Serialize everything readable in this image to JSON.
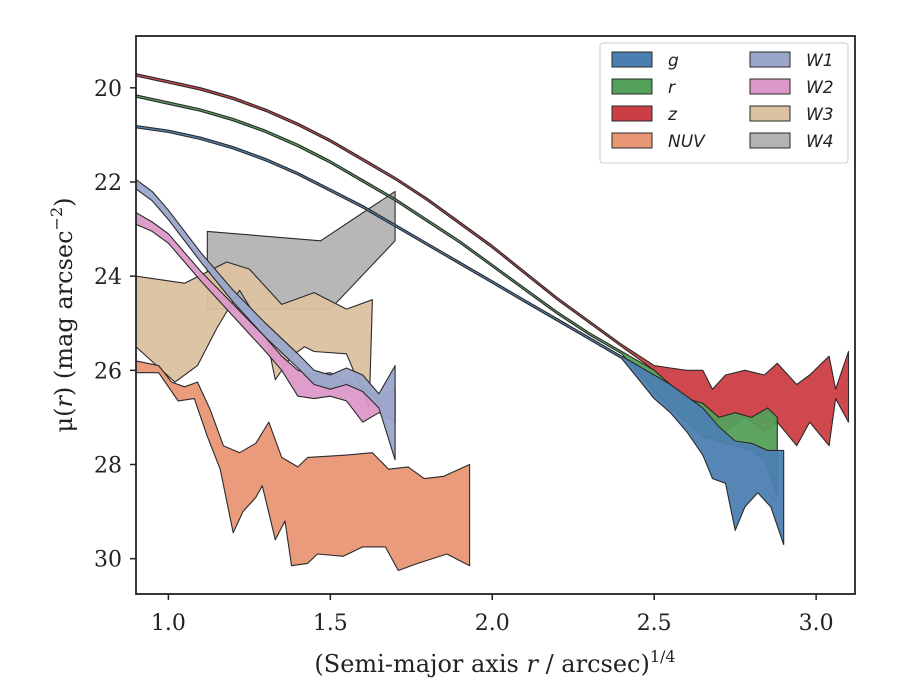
{
  "chart_data": {
    "type": "area",
    "xlabel_main": "(Semi-major axis ",
    "xlabel_var": "r",
    "xlabel_rest": " / arcsec)",
    "xlabel_exp": "1/4",
    "ylabel_main": "μ(",
    "ylabel_var": "r",
    "ylabel_rest": ") (mag arcsec",
    "ylabel_exp": "−2",
    "ylabel_close": ")",
    "xlim": [
      0.9,
      3.12
    ],
    "ylim": [
      30.75,
      18.9
    ],
    "y_inverted": true,
    "grid": false,
    "legend_placement": "top-right",
    "xticks": [
      {
        "v": 1.0,
        "label": "1.0"
      },
      {
        "v": 1.5,
        "label": "1.5"
      },
      {
        "v": 2.0,
        "label": "2.0"
      },
      {
        "v": 2.5,
        "label": "2.5"
      },
      {
        "v": 3.0,
        "label": "3.0"
      }
    ],
    "yticks": [
      {
        "v": 20,
        "label": "20"
      },
      {
        "v": 22,
        "label": "22"
      },
      {
        "v": 24,
        "label": "24"
      },
      {
        "v": 26,
        "label": "26"
      },
      {
        "v": 28,
        "label": "28"
      },
      {
        "v": 30,
        "label": "30"
      }
    ],
    "legend": [
      {
        "name": "g",
        "color": "#4c7fb1"
      },
      {
        "name": "r",
        "color": "#55a05a"
      },
      {
        "name": "z",
        "color": "#cc3e45"
      },
      {
        "name": "NUV",
        "color": "#e99675"
      },
      {
        "name": "W1",
        "color": "#9aa6cb"
      },
      {
        "name": "W2",
        "color": "#dc98c8"
      },
      {
        "name": "W3",
        "color": "#dbc19f"
      },
      {
        "name": "W4",
        "color": "#b3b3b3"
      }
    ],
    "series": [
      {
        "name": "W4",
        "color": "#b3b3b3",
        "polygon": [
          [
            1.12,
            23.05
          ],
          [
            1.47,
            23.25
          ],
          [
            1.7,
            22.2
          ],
          [
            1.7,
            23.25
          ],
          [
            1.5,
            24.7
          ],
          [
            1.12,
            24.7
          ]
        ]
      },
      {
        "name": "W3",
        "color": "#dbc19f",
        "polygon": [
          [
            0.9,
            24.0
          ],
          [
            1.05,
            24.15
          ],
          [
            1.18,
            23.7
          ],
          [
            1.25,
            23.85
          ],
          [
            1.35,
            24.6
          ],
          [
            1.45,
            24.35
          ],
          [
            1.55,
            24.7
          ],
          [
            1.63,
            24.5
          ],
          [
            1.62,
            26.8
          ],
          [
            1.55,
            25.65
          ],
          [
            1.45,
            25.6
          ],
          [
            1.42,
            25.5
          ],
          [
            1.38,
            25.7
          ],
          [
            1.33,
            26.2
          ],
          [
            1.3,
            25.2
          ],
          [
            1.22,
            24.3
          ],
          [
            1.15,
            25.1
          ],
          [
            1.09,
            25.9
          ],
          [
            1.02,
            26.25
          ],
          [
            0.9,
            25.5
          ]
        ]
      },
      {
        "name": "W2",
        "color": "#dc98c8",
        "upper": [
          [
            0.9,
            22.65
          ],
          [
            0.95,
            22.85
          ],
          [
            1.0,
            23.1
          ],
          [
            1.1,
            23.9
          ],
          [
            1.2,
            24.6
          ],
          [
            1.3,
            25.3
          ],
          [
            1.35,
            25.7
          ],
          [
            1.4,
            26.0
          ],
          [
            1.45,
            26.1
          ],
          [
            1.5,
            26.05
          ],
          [
            1.55,
            26.25
          ],
          [
            1.6,
            26.4
          ],
          [
            1.65,
            26.6
          ],
          [
            1.7,
            26.4
          ]
        ],
        "lower": [
          [
            0.9,
            22.9
          ],
          [
            0.95,
            23.05
          ],
          [
            1.0,
            23.3
          ],
          [
            1.1,
            24.1
          ],
          [
            1.2,
            24.85
          ],
          [
            1.3,
            25.6
          ],
          [
            1.35,
            26.0
          ],
          [
            1.4,
            26.55
          ],
          [
            1.45,
            26.6
          ],
          [
            1.5,
            26.55
          ],
          [
            1.55,
            26.65
          ],
          [
            1.6,
            27.1
          ],
          [
            1.65,
            26.9
          ],
          [
            1.7,
            27.1
          ]
        ]
      },
      {
        "name": "W1",
        "color": "#9aa6cb",
        "upper": [
          [
            0.9,
            21.95
          ],
          [
            0.95,
            22.2
          ],
          [
            1.0,
            22.6
          ],
          [
            1.1,
            23.5
          ],
          [
            1.2,
            24.3
          ],
          [
            1.3,
            25.0
          ],
          [
            1.4,
            25.65
          ],
          [
            1.45,
            26.0
          ],
          [
            1.5,
            26.1
          ],
          [
            1.55,
            25.95
          ],
          [
            1.6,
            26.1
          ],
          [
            1.65,
            26.5
          ],
          [
            1.7,
            25.9
          ]
        ],
        "lower": [
          [
            0.9,
            22.15
          ],
          [
            0.95,
            22.4
          ],
          [
            1.0,
            22.8
          ],
          [
            1.1,
            23.7
          ],
          [
            1.2,
            24.55
          ],
          [
            1.3,
            25.3
          ],
          [
            1.4,
            25.95
          ],
          [
            1.45,
            26.3
          ],
          [
            1.5,
            26.4
          ],
          [
            1.55,
            26.3
          ],
          [
            1.6,
            26.45
          ],
          [
            1.65,
            26.8
          ],
          [
            1.7,
            27.9
          ]
        ]
      },
      {
        "name": "NUV",
        "color": "#e99675",
        "polygon": [
          [
            0.9,
            25.8
          ],
          [
            0.97,
            25.9
          ],
          [
            1.01,
            26.25
          ],
          [
            1.05,
            26.35
          ],
          [
            1.09,
            26.25
          ],
          [
            1.13,
            26.85
          ],
          [
            1.17,
            27.6
          ],
          [
            1.22,
            27.75
          ],
          [
            1.27,
            27.55
          ],
          [
            1.31,
            27.1
          ],
          [
            1.35,
            27.85
          ],
          [
            1.4,
            28.05
          ],
          [
            1.43,
            27.85
          ],
          [
            1.55,
            27.8
          ],
          [
            1.63,
            27.75
          ],
          [
            1.68,
            28.1
          ],
          [
            1.74,
            28.05
          ],
          [
            1.79,
            28.3
          ],
          [
            1.85,
            28.25
          ],
          [
            1.93,
            28.0
          ],
          [
            1.93,
            30.15
          ],
          [
            1.86,
            29.9
          ],
          [
            1.77,
            30.1
          ],
          [
            1.71,
            30.25
          ],
          [
            1.67,
            29.75
          ],
          [
            1.6,
            29.75
          ],
          [
            1.54,
            29.95
          ],
          [
            1.46,
            29.9
          ],
          [
            1.43,
            30.1
          ],
          [
            1.38,
            30.15
          ],
          [
            1.36,
            29.2
          ],
          [
            1.33,
            29.6
          ],
          [
            1.29,
            28.45
          ],
          [
            1.27,
            28.7
          ],
          [
            1.23,
            29.0
          ],
          [
            1.2,
            29.45
          ],
          [
            1.16,
            28.1
          ],
          [
            1.12,
            27.4
          ],
          [
            1.08,
            26.6
          ],
          [
            1.03,
            26.65
          ],
          [
            0.97,
            26.05
          ],
          [
            0.9,
            26.05
          ]
        ]
      },
      {
        "name": "z",
        "color": "#cc3e45",
        "upper": [
          [
            0.9,
            19.7
          ],
          [
            1.0,
            19.85
          ],
          [
            1.1,
            20.0
          ],
          [
            1.2,
            20.2
          ],
          [
            1.3,
            20.45
          ],
          [
            1.4,
            20.75
          ],
          [
            1.5,
            21.1
          ],
          [
            1.6,
            21.5
          ],
          [
            1.7,
            21.9
          ],
          [
            1.8,
            22.35
          ],
          [
            1.9,
            22.85
          ],
          [
            2.0,
            23.35
          ],
          [
            2.1,
            23.9
          ],
          [
            2.2,
            24.45
          ],
          [
            2.3,
            24.95
          ],
          [
            2.4,
            25.45
          ],
          [
            2.5,
            25.9
          ],
          [
            2.55,
            25.95
          ],
          [
            2.6,
            26.0
          ],
          [
            2.65,
            26.0
          ],
          [
            2.68,
            26.4
          ],
          [
            2.72,
            26.1
          ],
          [
            2.78,
            26.0
          ],
          [
            2.84,
            26.1
          ],
          [
            2.88,
            25.85
          ],
          [
            2.94,
            26.3
          ],
          [
            2.98,
            26.1
          ],
          [
            3.04,
            25.7
          ],
          [
            3.06,
            26.4
          ],
          [
            3.1,
            25.6
          ],
          [
            3.1,
            27.1
          ],
          [
            3.06,
            26.6
          ],
          [
            3.04,
            27.6
          ],
          [
            2.98,
            27.1
          ],
          [
            2.94,
            27.6
          ],
          [
            2.88,
            27.1
          ],
          [
            2.84,
            27.3
          ],
          [
            2.78,
            27.0
          ],
          [
            2.72,
            27.3
          ],
          [
            2.68,
            27.0
          ],
          [
            2.65,
            26.9
          ],
          [
            2.6,
            26.75
          ],
          [
            2.55,
            26.35
          ],
          [
            2.5,
            26.0
          ]
        ],
        "lower": [
          [
            0.9,
            19.75
          ],
          [
            1.0,
            19.9
          ],
          [
            1.1,
            20.05
          ],
          [
            1.2,
            20.25
          ],
          [
            1.3,
            20.5
          ],
          [
            1.4,
            20.8
          ],
          [
            1.5,
            21.15
          ],
          [
            1.6,
            21.55
          ],
          [
            1.7,
            21.95
          ],
          [
            1.8,
            22.4
          ],
          [
            1.9,
            22.9
          ],
          [
            2.0,
            23.4
          ],
          [
            2.1,
            23.95
          ],
          [
            2.2,
            24.5
          ],
          [
            2.3,
            25.0
          ],
          [
            2.4,
            25.5
          ]
        ]
      },
      {
        "name": "r",
        "color": "#55a05a",
        "upper": [
          [
            0.9,
            20.15
          ],
          [
            1.0,
            20.3
          ],
          [
            1.1,
            20.45
          ],
          [
            1.2,
            20.65
          ],
          [
            1.3,
            20.9
          ],
          [
            1.4,
            21.2
          ],
          [
            1.5,
            21.55
          ],
          [
            1.6,
            21.95
          ],
          [
            1.7,
            22.35
          ],
          [
            1.8,
            22.8
          ],
          [
            1.9,
            23.25
          ],
          [
            2.0,
            23.75
          ],
          [
            2.1,
            24.25
          ],
          [
            2.2,
            24.75
          ],
          [
            2.3,
            25.2
          ],
          [
            2.4,
            25.6
          ],
          [
            2.5,
            26.0
          ],
          [
            2.55,
            26.3
          ],
          [
            2.6,
            26.6
          ],
          [
            2.65,
            26.7
          ],
          [
            2.7,
            27.0
          ],
          [
            2.75,
            26.9
          ],
          [
            2.8,
            27.0
          ],
          [
            2.85,
            26.8
          ],
          [
            2.88,
            27.0
          ],
          [
            2.88,
            28.65
          ],
          [
            2.84,
            27.9
          ],
          [
            2.8,
            27.7
          ],
          [
            2.75,
            27.6
          ],
          [
            2.7,
            27.5
          ],
          [
            2.65,
            27.4
          ],
          [
            2.6,
            27.1
          ],
          [
            2.55,
            26.8
          ],
          [
            2.5,
            26.45
          ]
        ],
        "lower": [
          [
            0.9,
            20.2
          ],
          [
            1.0,
            20.35
          ],
          [
            1.1,
            20.5
          ],
          [
            1.2,
            20.7
          ],
          [
            1.3,
            20.95
          ],
          [
            1.4,
            21.25
          ],
          [
            1.5,
            21.6
          ],
          [
            1.6,
            22.0
          ],
          [
            1.7,
            22.4
          ],
          [
            1.8,
            22.85
          ],
          [
            1.9,
            23.3
          ],
          [
            2.0,
            23.8
          ],
          [
            2.1,
            24.3
          ],
          [
            2.2,
            24.8
          ],
          [
            2.3,
            25.25
          ],
          [
            2.4,
            25.65
          ]
        ]
      },
      {
        "name": "g",
        "color": "#4c7fb1",
        "upper": [
          [
            0.9,
            20.8
          ],
          [
            1.0,
            20.9
          ],
          [
            1.1,
            21.05
          ],
          [
            1.2,
            21.25
          ],
          [
            1.3,
            21.5
          ],
          [
            1.4,
            21.8
          ],
          [
            1.5,
            22.15
          ],
          [
            1.6,
            22.5
          ],
          [
            1.7,
            22.9
          ],
          [
            1.8,
            23.3
          ],
          [
            1.9,
            23.7
          ],
          [
            2.0,
            24.1
          ],
          [
            2.1,
            24.5
          ],
          [
            2.2,
            24.9
          ],
          [
            2.3,
            25.3
          ],
          [
            2.4,
            25.7
          ],
          [
            2.5,
            26.1
          ],
          [
            2.55,
            26.3
          ],
          [
            2.6,
            26.55
          ],
          [
            2.65,
            26.8
          ],
          [
            2.7,
            27.2
          ],
          [
            2.75,
            27.5
          ],
          [
            2.8,
            27.55
          ],
          [
            2.85,
            27.7
          ],
          [
            2.9,
            27.7
          ],
          [
            2.9,
            29.7
          ],
          [
            2.86,
            28.9
          ],
          [
            2.82,
            28.6
          ],
          [
            2.78,
            28.9
          ],
          [
            2.75,
            29.4
          ],
          [
            2.72,
            28.4
          ],
          [
            2.68,
            28.3
          ],
          [
            2.65,
            27.8
          ],
          [
            2.6,
            27.3
          ],
          [
            2.55,
            26.9
          ],
          [
            2.5,
            26.6
          ]
        ],
        "lower": [
          [
            0.9,
            20.85
          ],
          [
            1.0,
            20.95
          ],
          [
            1.1,
            21.1
          ],
          [
            1.2,
            21.3
          ],
          [
            1.3,
            21.55
          ],
          [
            1.4,
            21.85
          ],
          [
            1.5,
            22.2
          ],
          [
            1.6,
            22.55
          ],
          [
            1.7,
            22.95
          ],
          [
            1.8,
            23.35
          ],
          [
            1.9,
            23.75
          ],
          [
            2.0,
            24.15
          ],
          [
            2.1,
            24.55
          ],
          [
            2.2,
            24.95
          ],
          [
            2.3,
            25.35
          ],
          [
            2.4,
            25.75
          ]
        ]
      }
    ]
  }
}
